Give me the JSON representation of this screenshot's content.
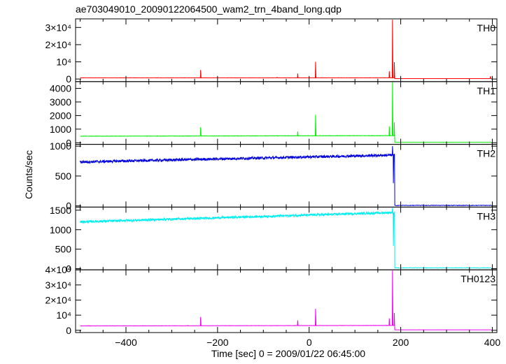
{
  "chart_data": {
    "type": "line",
    "title": "ae703049010_20090122064500_wam2_trn_4band_long.qdp",
    "xlabel": "Time [sec] 0 = 2009/01/22 06:45:00",
    "ylabel": "Counts/sec",
    "xlim": [
      -510,
      410
    ],
    "x_ticks": [
      -400,
      -200,
      0,
      200,
      400
    ],
    "x_tick_labels": [
      "−400",
      "−200",
      "0",
      "200",
      "400"
    ],
    "burst_time": 182,
    "panels": [
      {
        "name": "TH0",
        "color": "#ff0000",
        "ylim": [
          -1500,
          35000
        ],
        "yticks": [
          {
            "v": 0,
            "label": "0"
          },
          {
            "v": 10000,
            "label": "10⁴"
          },
          {
            "v": 20000,
            "label": "2×10⁴"
          },
          {
            "v": 30000,
            "label": "3×10⁴"
          }
        ],
        "base_start": 700,
        "base_end": 700,
        "noise": 60,
        "post_burst": 250,
        "spikes": [
          {
            "x": -237,
            "y": 5200
          },
          {
            "x": -70,
            "y": 1000
          },
          {
            "x": -25,
            "y": 3200
          },
          {
            "x": 14,
            "y": 10000
          },
          {
            "x": 175,
            "y": 4600
          },
          {
            "x": 182,
            "y": 34500
          },
          {
            "x": 186,
            "y": 9800
          },
          {
            "x": 396,
            "y": 1600
          }
        ]
      },
      {
        "name": "TH1",
        "color": "#00ee00",
        "ylim": [
          -120,
          4500
        ],
        "yticks": [
          {
            "v": 0,
            "label": "0"
          },
          {
            "v": 1000,
            "label": "1000"
          },
          {
            "v": 2000,
            "label": "2000"
          },
          {
            "v": 3000,
            "label": "3000"
          },
          {
            "v": 4000,
            "label": "4000"
          }
        ],
        "base_start": 480,
        "base_end": 520,
        "noise": 12,
        "post_burst": 30,
        "spikes": [
          {
            "x": -237,
            "y": 1130
          },
          {
            "x": -25,
            "y": 820
          },
          {
            "x": 14,
            "y": 2050
          },
          {
            "x": 175,
            "y": 1200
          },
          {
            "x": 182,
            "y": 4450
          },
          {
            "x": 186,
            "y": 1500
          }
        ]
      },
      {
        "name": "TH2",
        "color": "#0000dd",
        "ylim": [
          -20,
          1030
        ],
        "yticks": [
          {
            "v": 0,
            "label": "0"
          },
          {
            "v": 500,
            "label": "500"
          },
          {
            "v": 1000,
            "label": "1000"
          }
        ],
        "base_start": 735,
        "base_end": 850,
        "noise": 22,
        "post_burst": 8,
        "spikes": [
          {
            "x": 182,
            "y": 1000
          },
          {
            "x": 184,
            "y": 380
          }
        ]
      },
      {
        "name": "TH3",
        "color": "#00eeee",
        "ylim": [
          -30,
          1580
        ],
        "yticks": [
          {
            "v": 0,
            "label": "0"
          },
          {
            "v": 500,
            "label": "500"
          },
          {
            "v": 1000,
            "label": "1000"
          },
          {
            "v": 1500,
            "label": "1500"
          }
        ],
        "base_start": 1200,
        "base_end": 1440,
        "noise": 28,
        "post_burst": 20,
        "spikes": [
          {
            "x": 182,
            "y": 1560
          },
          {
            "x": 184,
            "y": 580
          }
        ]
      },
      {
        "name": "TH0123",
        "color": "#ee00ee",
        "ylim": [
          -1500,
          40000
        ],
        "yticks": [
          {
            "v": 0,
            "label": "0"
          },
          {
            "v": 10000,
            "label": "10⁴"
          },
          {
            "v": 20000,
            "label": "2×10⁴"
          },
          {
            "v": 30000,
            "label": "3×10⁴"
          },
          {
            "v": 40000,
            "label": "4×10⁴"
          }
        ],
        "base_start": 2900,
        "base_end": 3200,
        "noise": 80,
        "post_burst": 300,
        "spikes": [
          {
            "x": -237,
            "y": 8800
          },
          {
            "x": -25,
            "y": 6600
          },
          {
            "x": 14,
            "y": 14200
          },
          {
            "x": 175,
            "y": 7900
          },
          {
            "x": 182,
            "y": 39500
          },
          {
            "x": 186,
            "y": 11500
          }
        ]
      }
    ]
  }
}
